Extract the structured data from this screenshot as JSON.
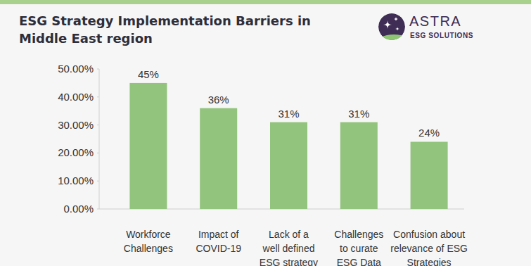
{
  "chart_data": {
    "type": "bar",
    "title": "ESG Strategy Implementation Barriers in\nMiddle East region",
    "annotations": [
      "ASTRA",
      "ESG SOLUTIONS"
    ],
    "categories": [
      "Workforce\nChallenges",
      "Impact of\nCOVID-19",
      "Lack of a\nwell defined\nESG strategy",
      "Challenges\nto curate\nESG Data",
      "Confusion about\nrelevance of ESG\nStrategies"
    ],
    "values": [
      45,
      36,
      31,
      31,
      24
    ],
    "value_labels": [
      "45%",
      "36%",
      "31%",
      "31%",
      "24%"
    ],
    "color": "#93c47d",
    "ylim": [
      0,
      50
    ],
    "yticks": [
      {
        "value": 0,
        "label": "0.00%"
      },
      {
        "value": 10,
        "label": "10.00%"
      },
      {
        "value": 20,
        "label": "20.00%"
      },
      {
        "value": 30,
        "label": "30.00%"
      },
      {
        "value": 40,
        "label": "40.00%"
      },
      {
        "value": 50,
        "label": "50.00%"
      }
    ],
    "grid": false,
    "data_labels": true
  }
}
